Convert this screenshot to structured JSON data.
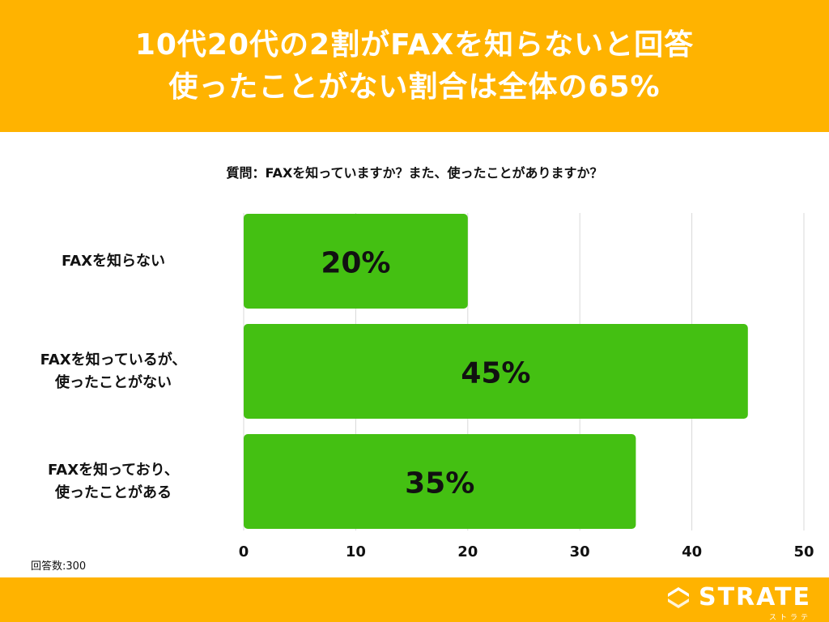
{
  "header": {
    "title_line1": "10代20代の2割がFAXを知らないと回答",
    "title_line2": "使ったことがない割合は全体の65%"
  },
  "question": "質問：FAXを知っていますか？また、使ったことがありますか？",
  "chart_data": {
    "type": "bar",
    "orientation": "horizontal",
    "categories": [
      "FAXを知らない",
      "FAXを知っているが、使ったことがない",
      "FAXを知っており、使ったことがある"
    ],
    "category_lines": [
      [
        "FAXを知らない"
      ],
      [
        "FAXを知っているが、",
        "使ったことがない"
      ],
      [
        "FAXを知っており、",
        "使ったことがある"
      ]
    ],
    "values": [
      20,
      45,
      35
    ],
    "data_labels": [
      "20%",
      "45%",
      "35%"
    ],
    "xlim": [
      0,
      50
    ],
    "xticks": [
      0,
      10,
      20,
      30,
      40,
      50
    ],
    "grid": true,
    "bar_color": "#44C012"
  },
  "respondents": "回答数:300",
  "footer": {
    "logo_text": "STRATE",
    "logo_sub": "ストラテ"
  },
  "colors": {
    "accent": "#FFB300",
    "bar": "#44C012"
  }
}
